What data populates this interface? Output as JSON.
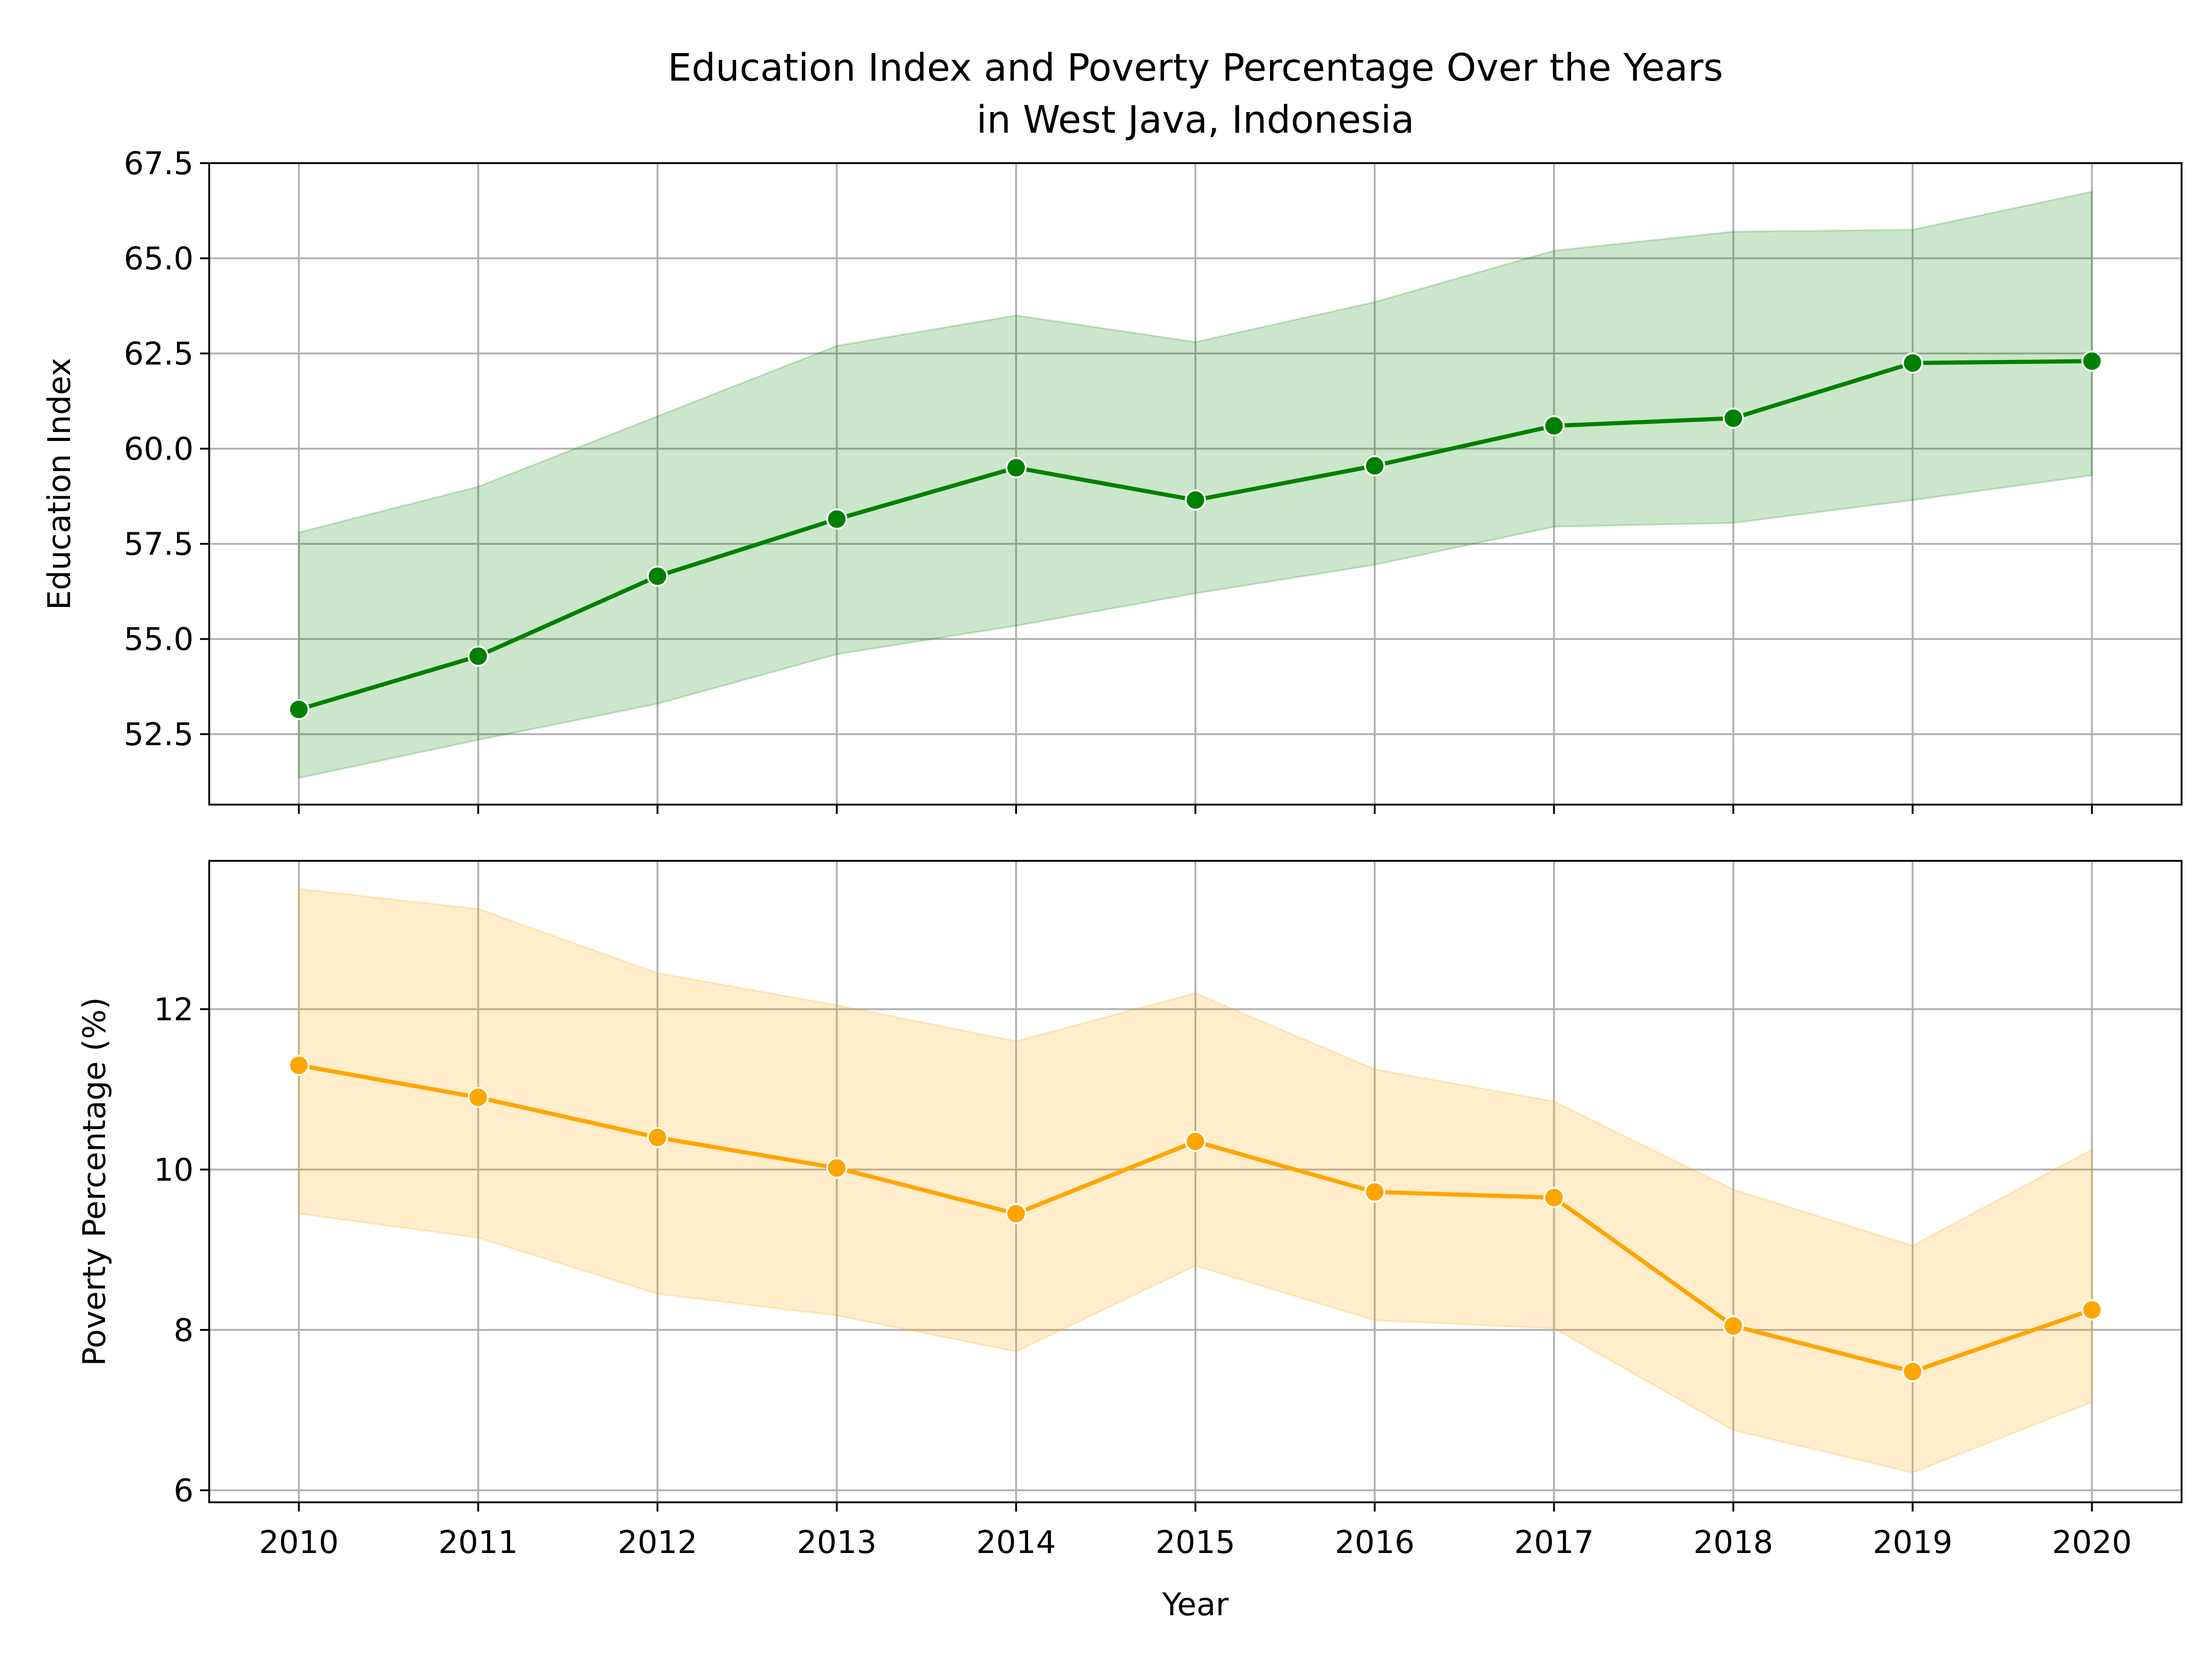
{
  "chart_data": {
    "title": [
      "Education Index and Poverty Percentage Over the Years",
      "in West Java, Indonesia"
    ],
    "xlabel": "Year",
    "shared_x": true,
    "grid": true,
    "panels": [
      {
        "type": "line",
        "ylabel": "Education Index",
        "color": "#008000",
        "band_color": "#008000",
        "x": [
          2010,
          2011,
          2012,
          2013,
          2014,
          2015,
          2016,
          2017,
          2018,
          2019,
          2020
        ],
        "y": [
          53.15,
          54.55,
          56.65,
          58.15,
          59.5,
          58.65,
          59.55,
          60.6,
          60.8,
          62.25,
          62.3
        ],
        "band_upper": [
          57.8,
          59.0,
          60.85,
          62.7,
          63.5,
          62.8,
          63.85,
          65.2,
          65.7,
          65.75,
          66.75
        ],
        "band_lower": [
          51.35,
          52.35,
          53.3,
          54.6,
          55.35,
          56.2,
          56.95,
          57.95,
          58.05,
          58.65,
          59.3
        ],
        "yticks": [
          "52.5",
          "55.0",
          "57.5",
          "60.0",
          "62.5",
          "65.0",
          "67.5"
        ],
        "ytick_values": [
          52.5,
          55.0,
          57.5,
          60.0,
          62.5,
          65.0,
          67.5
        ],
        "ylim": [
          50.65,
          67.5
        ]
      },
      {
        "type": "line",
        "ylabel": "Poverty Percentage (%)",
        "color": "#FFA500",
        "band_color": "#FFA500",
        "x": [
          2010,
          2011,
          2012,
          2013,
          2014,
          2015,
          2016,
          2017,
          2018,
          2019,
          2020
        ],
        "y": [
          11.3,
          10.9,
          10.4,
          10.02,
          9.45,
          10.35,
          9.72,
          9.65,
          8.05,
          7.48,
          8.25
        ],
        "band_upper": [
          13.5,
          13.25,
          12.45,
          12.05,
          11.6,
          12.2,
          11.25,
          10.85,
          9.75,
          9.05,
          10.25
        ],
        "band_lower": [
          9.45,
          9.15,
          8.45,
          8.18,
          7.73,
          8.8,
          8.12,
          8.02,
          6.75,
          6.22,
          7.1
        ],
        "yticks": [
          "6",
          "8",
          "10",
          "12"
        ],
        "ytick_values": [
          6,
          8,
          10,
          12
        ],
        "ylim": [
          5.85,
          13.85
        ]
      }
    ],
    "xticks": [
      "2010",
      "2011",
      "2012",
      "2013",
      "2014",
      "2015",
      "2016",
      "2017",
      "2018",
      "2019",
      "2020"
    ],
    "xtick_values": [
      2010,
      2011,
      2012,
      2013,
      2014,
      2015,
      2016,
      2017,
      2018,
      2019,
      2020
    ],
    "xlim": [
      2009.5,
      2020.5
    ]
  }
}
